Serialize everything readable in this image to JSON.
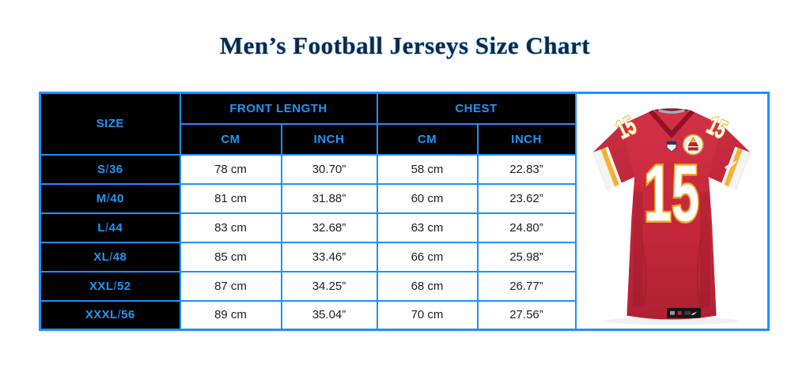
{
  "title": "Men’s Football Jerseys Size Chart",
  "colors": {
    "accent_blue": "#2196f3",
    "border_blue": "#1e90ff",
    "header_bg": "#010101",
    "title_navy": "#0d2949",
    "jersey_red": "#c5273a",
    "jersey_gold": "#f2a71b"
  },
  "table": {
    "size_header": "SIZE",
    "front_length_header": "FRONT LENGTH",
    "chest_header": "CHEST",
    "cm_header": "CM",
    "inch_header": "INCH",
    "rows": [
      {
        "size": "S/36",
        "front_cm": "78 cm",
        "front_inch": "30.70”",
        "chest_cm": "58 cm",
        "chest_inch": "22.83”"
      },
      {
        "size": "M/40",
        "front_cm": "81 cm",
        "front_inch": "31.88”",
        "chest_cm": "60 cm",
        "chest_inch": "23.62”"
      },
      {
        "size": "L/44",
        "front_cm": "83 cm",
        "front_inch": "32.68”",
        "chest_cm": "63 cm",
        "chest_inch": "24.80”"
      },
      {
        "size": "XL/48",
        "front_cm": "85 cm",
        "front_inch": "33.46”",
        "chest_cm": "66 cm",
        "chest_inch": "25.98”"
      },
      {
        "size": "XXL/52",
        "front_cm": "87 cm",
        "front_inch": "34.25”",
        "chest_cm": "68 cm",
        "chest_inch": "26.77”"
      },
      {
        "size": "XXXL/56",
        "front_cm": "89 cm",
        "front_inch": "35.04”",
        "chest_cm": "70 cm",
        "chest_inch": "27.56”"
      }
    ]
  },
  "jersey": {
    "number": "15"
  },
  "chart_data": {
    "type": "table",
    "title": "Men’s Football Jerseys Size Chart",
    "columns": [
      "SIZE",
      "FRONT LENGTH (CM)",
      "FRONT LENGTH (INCH)",
      "CHEST (CM)",
      "CHEST (INCH)"
    ],
    "rows": [
      [
        "S/36",
        78,
        30.7,
        58,
        22.83
      ],
      [
        "M/40",
        81,
        31.88,
        60,
        23.62
      ],
      [
        "L/44",
        83,
        32.68,
        63,
        24.8
      ],
      [
        "XL/48",
        85,
        33.46,
        66,
        25.98
      ],
      [
        "XXL/52",
        87,
        34.25,
        68,
        26.77
      ],
      [
        "XXXL/56",
        89,
        35.04,
        70,
        27.56
      ]
    ]
  }
}
